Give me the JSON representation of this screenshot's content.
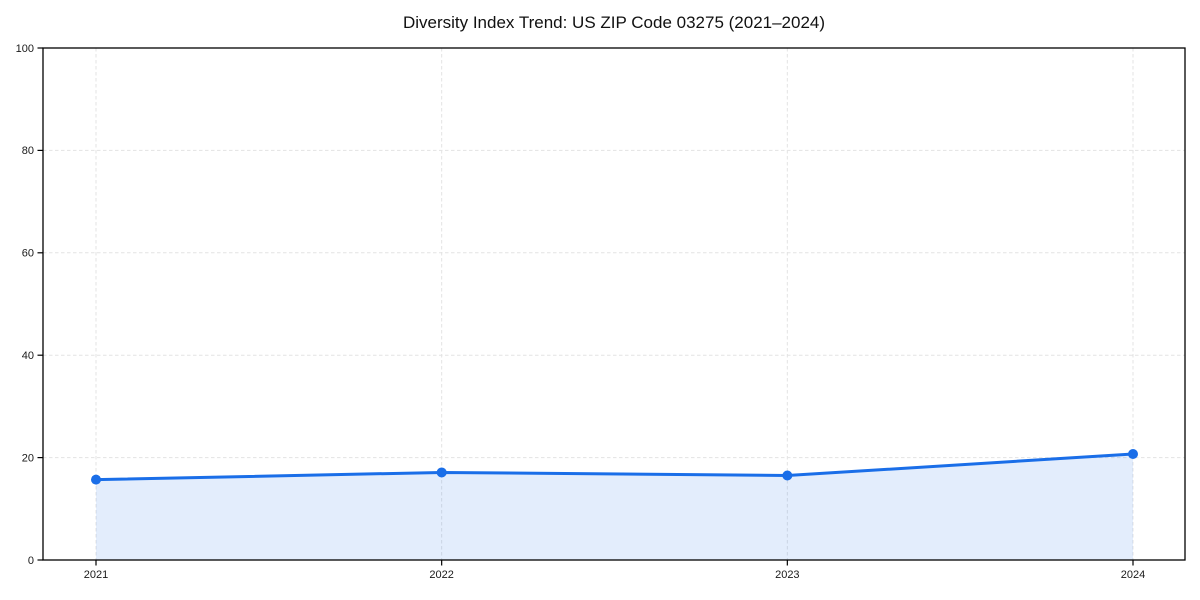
{
  "chart_data": {
    "type": "line",
    "title": "Diversity Index Trend: US ZIP Code 03275 (2021–2024)",
    "xlabel": "",
    "ylabel": "",
    "categories": [
      "2021",
      "2022",
      "2023",
      "2024"
    ],
    "series": [
      {
        "name": "Diversity Index",
        "values": [
          15.7,
          17.1,
          16.5,
          20.7
        ]
      }
    ],
    "ylim": [
      0,
      100
    ],
    "y_ticks": [
      0,
      20,
      40,
      60,
      80,
      100
    ],
    "grid": true,
    "legend_position": "none",
    "area_fill": true,
    "marker": "circle",
    "colors": {
      "line": "#1a6ee8",
      "marker": "#1a6ee8",
      "fill": "rgba(26,110,232,0.12)",
      "grid": "#e3e3e3",
      "axis": "#000000",
      "tick_text": "#1a1a1a",
      "title_text": "#111111",
      "background": "#ffffff"
    }
  }
}
